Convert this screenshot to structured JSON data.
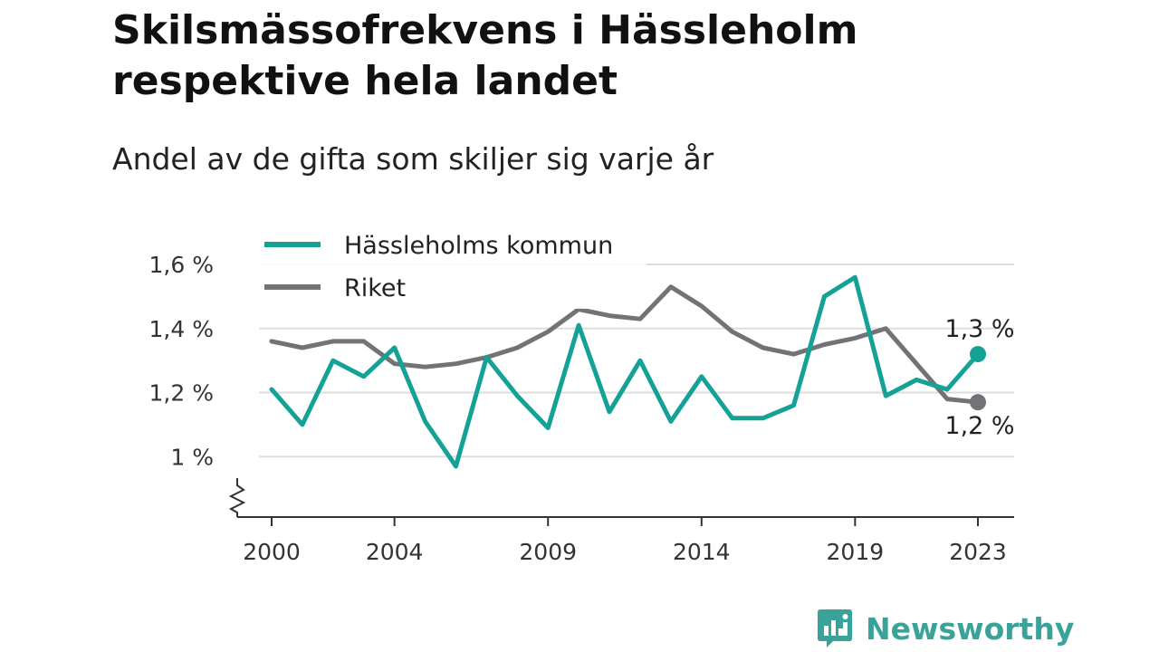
{
  "title": "Skilsmässofrekvens i Hässleholm respektive hela landet",
  "subtitle": "Andel av de gifta som skiljer sig varje år",
  "brand": {
    "name": "Newsworthy",
    "icon": "newsworthy-logo-icon",
    "color": "#3aa399"
  },
  "chart_data": {
    "type": "line",
    "title": "Skilsmässofrekvens i Hässleholm respektive hela landet",
    "subtitle": "Andel av de gifta som skiljer sig varje år",
    "xlabel": "",
    "ylabel": "",
    "x": [
      2000,
      2001,
      2002,
      2003,
      2004,
      2005,
      2006,
      2007,
      2008,
      2009,
      2010,
      2011,
      2012,
      2013,
      2014,
      2015,
      2016,
      2017,
      2018,
      2019,
      2020,
      2021,
      2022,
      2023
    ],
    "x_ticks": [
      2000,
      2004,
      2009,
      2014,
      2019,
      2023
    ],
    "x_tick_labels": [
      "2000",
      "2004",
      "2009",
      "2014",
      "2019",
      "2023"
    ],
    "ylim": [
      0.82,
      1.6
    ],
    "y_ticks": [
      1.0,
      1.2,
      1.4,
      1.6
    ],
    "y_tick_labels": [
      "1 %",
      "1,2 %",
      "1,4 %",
      "1,6 %"
    ],
    "y_axis_break": true,
    "grid": true,
    "legend_position": "top-left",
    "series": [
      {
        "name": "Hässleholms kommun",
        "color": "#14a196",
        "values": [
          1.21,
          1.1,
          1.3,
          1.25,
          1.34,
          1.11,
          0.97,
          1.31,
          1.19,
          1.09,
          1.41,
          1.14,
          1.3,
          1.11,
          1.25,
          1.12,
          1.12,
          1.16,
          1.5,
          1.56,
          1.19,
          1.24,
          1.21,
          1.32
        ],
        "end_label": "1,3 %"
      },
      {
        "name": "Riket",
        "color": "#737277",
        "values": [
          1.36,
          1.34,
          1.36,
          1.36,
          1.29,
          1.28,
          1.29,
          1.31,
          1.34,
          1.39,
          1.46,
          1.44,
          1.43,
          1.53,
          1.47,
          1.39,
          1.34,
          1.32,
          1.35,
          1.37,
          1.4,
          1.29,
          1.18,
          1.17
        ],
        "end_label": "1,2 %"
      }
    ]
  }
}
